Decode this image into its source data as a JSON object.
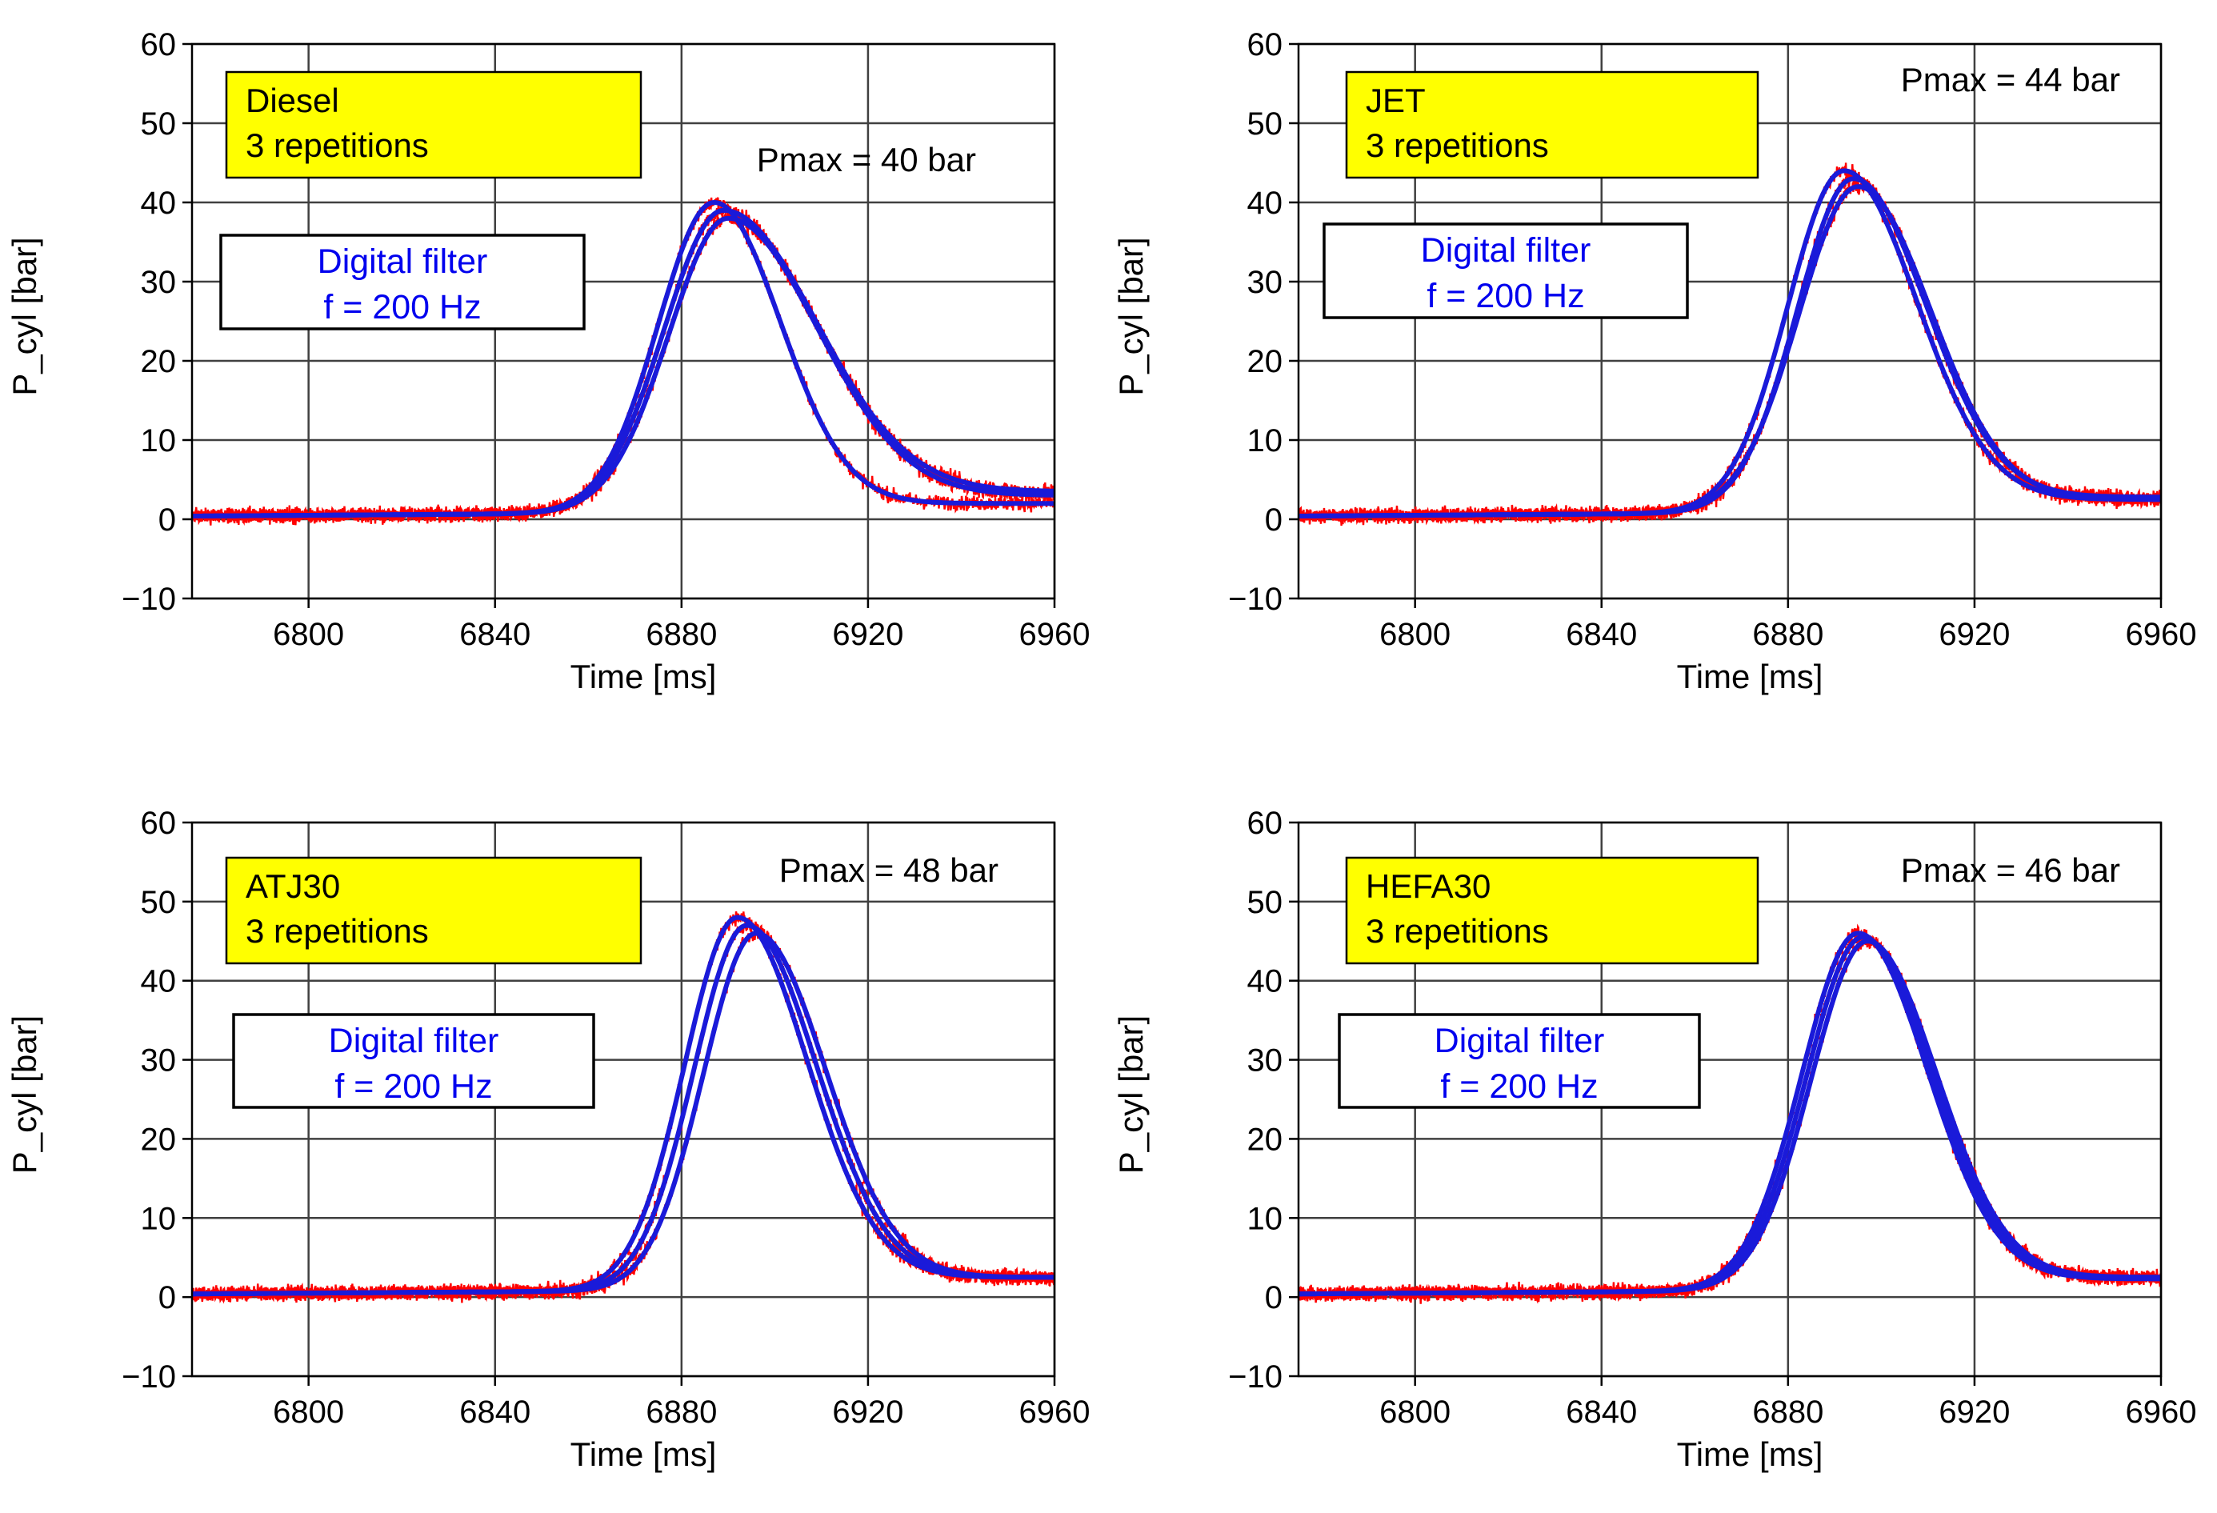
{
  "figure": {
    "xlabel": "Time [ms]",
    "ylabel": "P_cyl [bar]",
    "colors": {
      "raw": "#ff0000",
      "filtered": "#1a1ad9",
      "fuel_box": "#ffff00",
      "filter_text": "#0000ee",
      "grid": "#404040"
    }
  },
  "chart_data": [
    {
      "type": "line",
      "fuel_label": "Diesel",
      "repetitions_label": "3 repetitions",
      "pmax_label": "Pmax = 40 bar",
      "filter_line1": "Digital filter",
      "filter_line2": "f = 200 Hz",
      "xlabel": "Time [ms]",
      "ylabel": "P_cyl [bar]",
      "xlim": [
        6775,
        6960
      ],
      "ylim": [
        -10,
        60
      ],
      "x_ticks": [
        6800,
        6840,
        6880,
        6920,
        6960
      ],
      "y_ticks": [
        -10,
        0,
        10,
        20,
        30,
        40,
        50,
        60
      ],
      "grid": true,
      "series_style": {
        "raw": "red noisy",
        "filtered": "blue smooth"
      },
      "repetitions": [
        {
          "peak_time": 6887,
          "peak": 40,
          "end": 2.0,
          "rise_width": 17,
          "fall_width": 20
        },
        {
          "peak_time": 6889,
          "peak": 39,
          "end": 3.5,
          "rise_width": 18,
          "fall_width": 28
        },
        {
          "peak_time": 6890,
          "peak": 38,
          "end": 3.0,
          "rise_width": 18,
          "fall_width": 27
        }
      ]
    },
    {
      "type": "line",
      "fuel_label": "JET",
      "repetitions_label": "3 repetitions",
      "pmax_label": "Pmax = 44 bar",
      "filter_line1": "Digital filter",
      "filter_line2": "f = 200 Hz",
      "xlabel": "Time [ms]",
      "ylabel": "P_cyl [bar]",
      "xlim": [
        6775,
        6960
      ],
      "ylim": [
        -10,
        60
      ],
      "x_ticks": [
        6800,
        6840,
        6880,
        6920,
        6960
      ],
      "y_ticks": [
        -10,
        0,
        10,
        20,
        30,
        40,
        50,
        60
      ],
      "grid": true,
      "series_style": {
        "raw": "red noisy",
        "filtered": "blue smooth"
      },
      "repetitions": [
        {
          "peak_time": 6892,
          "peak": 44,
          "end": 2.5,
          "rise_width": 17,
          "fall_width": 22
        },
        {
          "peak_time": 6894,
          "peak": 43,
          "end": 2.8,
          "rise_width": 17,
          "fall_width": 22
        },
        {
          "peak_time": 6895,
          "peak": 42,
          "end": 2.5,
          "rise_width": 18,
          "fall_width": 22
        }
      ]
    },
    {
      "type": "line",
      "fuel_label": "ATJ30",
      "repetitions_label": "3 repetitions",
      "pmax_label": "Pmax = 48 bar",
      "filter_line1": "Digital filter",
      "filter_line2": "f = 200 Hz",
      "xlabel": "Time [ms]",
      "ylabel": "P_cyl [bar]",
      "xlim": [
        6775,
        6960
      ],
      "ylim": [
        -10,
        60
      ],
      "x_ticks": [
        6800,
        6840,
        6880,
        6920,
        6960
      ],
      "y_ticks": [
        -10,
        0,
        10,
        20,
        30,
        40,
        50,
        60
      ],
      "grid": true,
      "series_style": {
        "raw": "red noisy",
        "filtered": "blue smooth"
      },
      "repetitions": [
        {
          "peak_time": 6892,
          "peak": 48,
          "end": 2.5,
          "rise_width": 16,
          "fall_width": 21
        },
        {
          "peak_time": 6894,
          "peak": 47,
          "end": 2.5,
          "rise_width": 16,
          "fall_width": 21
        },
        {
          "peak_time": 6896,
          "peak": 46,
          "end": 2.5,
          "rise_width": 16,
          "fall_width": 21
        }
      ]
    },
    {
      "type": "line",
      "fuel_label": "HEFA30",
      "repetitions_label": "3 repetitions",
      "pmax_label": "Pmax = 46 bar",
      "filter_line1": "Digital filter",
      "filter_line2": "f = 200 Hz",
      "xlabel": "Time [ms]",
      "ylabel": "P_cyl [bar]",
      "xlim": [
        6775,
        6960
      ],
      "ylim": [
        -10,
        60
      ],
      "x_ticks": [
        6800,
        6840,
        6880,
        6920,
        6960
      ],
      "y_ticks": [
        -10,
        0,
        10,
        20,
        30,
        40,
        50,
        60
      ],
      "grid": true,
      "series_style": {
        "raw": "red noisy",
        "filtered": "blue smooth"
      },
      "repetitions": [
        {
          "peak_time": 6895,
          "peak": 46,
          "end": 2.3,
          "rise_width": 17,
          "fall_width": 21
        },
        {
          "peak_time": 6896,
          "peak": 45.5,
          "end": 2.5,
          "rise_width": 17,
          "fall_width": 21
        },
        {
          "peak_time": 6897,
          "peak": 45,
          "end": 2.5,
          "rise_width": 17,
          "fall_width": 21
        }
      ]
    }
  ]
}
